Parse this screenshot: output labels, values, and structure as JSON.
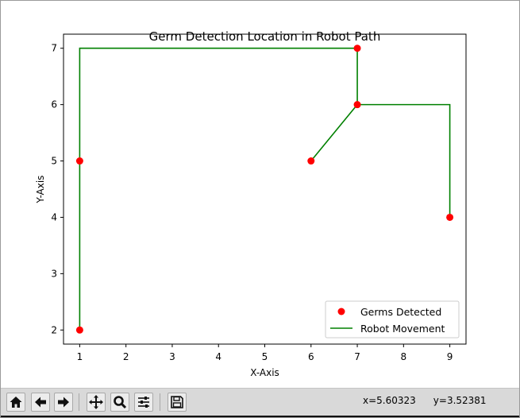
{
  "window": {
    "title": ""
  },
  "toolbar": {
    "buttons": [
      {
        "name": "home-button",
        "icon": "home-icon"
      },
      {
        "name": "back-button",
        "icon": "arrow-left-icon"
      },
      {
        "name": "forward-button",
        "icon": "arrow-right-icon"
      },
      {
        "name": "pan-button",
        "icon": "move-icon"
      },
      {
        "name": "zoom-button",
        "icon": "magnifier-icon"
      },
      {
        "name": "configure-subplots-button",
        "icon": "sliders-icon"
      },
      {
        "name": "save-button",
        "icon": "floppy-disk-icon"
      }
    ],
    "coords": {
      "x": "x=5.60323",
      "y": "y=3.52381"
    }
  },
  "chart_data": {
    "type": "line",
    "title": "Germ Detection Location in Robot Path",
    "xlabel": "X-Axis",
    "ylabel": "Y-Axis",
    "xlim": [
      0.65,
      9.35
    ],
    "ylim": [
      1.75,
      7.25
    ],
    "xticks": [
      1,
      2,
      3,
      4,
      5,
      6,
      7,
      8,
      9
    ],
    "yticks": [
      2,
      3,
      4,
      5,
      6,
      7
    ],
    "grid": false,
    "legend_position": "lower-right",
    "series": [
      {
        "name": "Germs Detected",
        "kind": "scatter",
        "color": "#ff0000",
        "points": [
          [
            1,
            2
          ],
          [
            1,
            5
          ],
          [
            7,
            7
          ],
          [
            7,
            6
          ],
          [
            6,
            5
          ],
          [
            9,
            4
          ]
        ]
      },
      {
        "name": "Robot Movement",
        "kind": "line",
        "color": "#008000",
        "points": [
          [
            1,
            2
          ],
          [
            1,
            7
          ],
          [
            7,
            7
          ],
          [
            7,
            6
          ],
          [
            6,
            5
          ],
          [
            7,
            6
          ],
          [
            9,
            6
          ],
          [
            9,
            4
          ]
        ]
      }
    ]
  },
  "colors": {
    "toolbar_bg": "#d9d9d9",
    "germ": "#ff0000",
    "path": "#008000"
  }
}
